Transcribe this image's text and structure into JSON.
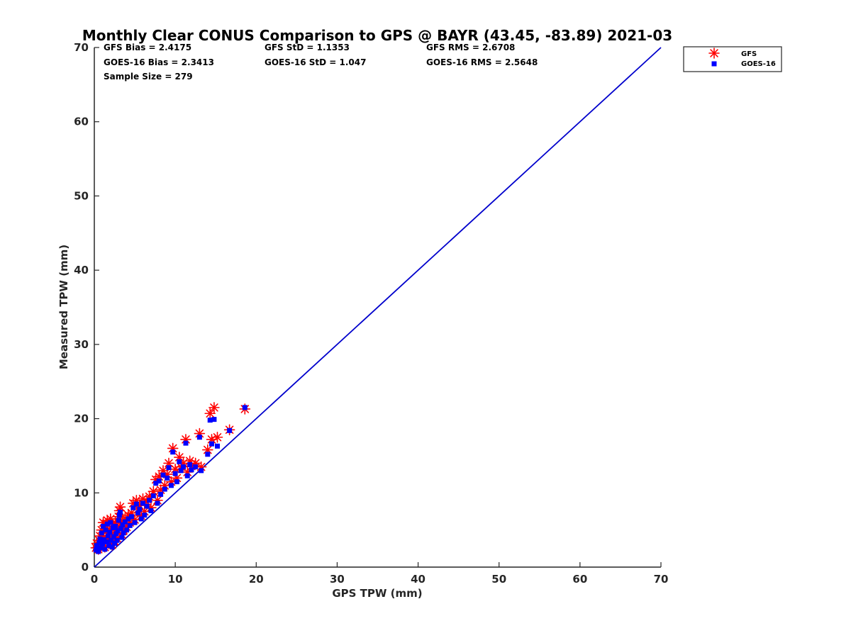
{
  "chart_data": {
    "type": "scatter",
    "title": "Monthly Clear CONUS Comparison to GPS @ BAYR (43.45, -83.89) 2021-03",
    "xlabel": "GPS TPW (mm)",
    "ylabel": "Measured TPW (mm)",
    "xlim": [
      0,
      70
    ],
    "ylim": [
      0,
      70
    ],
    "x_ticks": [
      "0",
      "10",
      "20",
      "30",
      "40",
      "50",
      "60",
      "70"
    ],
    "y_ticks": [
      "0",
      "10",
      "20",
      "30",
      "40",
      "50",
      "60",
      "70"
    ],
    "grid": false,
    "legend_position": "top-right-outside",
    "stats": [
      "GFS Bias = 2.4175",
      "GFS StD = 1.1353",
      "GFS RMS = 2.6708",
      "GOES-16 Bias = 2.3413",
      "GOES-16 StD = 1.047",
      "GOES-16 RMS = 2.5648",
      "Sample Size = 279"
    ],
    "reference_line": {
      "x": [
        0,
        70
      ],
      "y": [
        0,
        70
      ],
      "color": "#0000cc"
    },
    "series": [
      {
        "name": "GFS",
        "marker": "asterisk",
        "color": "#ff0000",
        "points": [
          [
            0.2,
            2.6
          ],
          [
            0.3,
            3.2
          ],
          [
            0.5,
            2.4
          ],
          [
            0.6,
            3.6
          ],
          [
            0.7,
            4.2
          ],
          [
            0.8,
            2.9
          ],
          [
            0.9,
            5.0
          ],
          [
            1.0,
            3.4
          ],
          [
            1.1,
            6.0
          ],
          [
            1.2,
            4.1
          ],
          [
            1.3,
            2.7
          ],
          [
            1.4,
            5.5
          ],
          [
            1.5,
            3.8
          ],
          [
            1.6,
            6.3
          ],
          [
            1.7,
            4.6
          ],
          [
            1.8,
            3.2
          ],
          [
            1.9,
            5.1
          ],
          [
            2.0,
            6.5
          ],
          [
            2.1,
            4.0
          ],
          [
            2.2,
            3.0
          ],
          [
            2.3,
            5.8
          ],
          [
            2.4,
            4.5
          ],
          [
            2.5,
            3.5
          ],
          [
            2.6,
            6.0
          ],
          [
            2.7,
            4.9
          ],
          [
            2.8,
            3.9
          ],
          [
            2.9,
            5.3
          ],
          [
            3.0,
            6.8
          ],
          [
            3.1,
            7.6
          ],
          [
            3.2,
            8.1
          ],
          [
            3.3,
            5.6
          ],
          [
            3.4,
            4.4
          ],
          [
            3.5,
            6.2
          ],
          [
            3.6,
            5.0
          ],
          [
            3.8,
            6.6
          ],
          [
            4.0,
            5.4
          ],
          [
            4.2,
            7.0
          ],
          [
            4.4,
            6.0
          ],
          [
            4.6,
            7.3
          ],
          [
            4.8,
            8.6
          ],
          [
            5.0,
            6.4
          ],
          [
            5.2,
            9.0
          ],
          [
            5.4,
            7.8
          ],
          [
            5.6,
            8.3
          ],
          [
            5.8,
            6.9
          ],
          [
            6.0,
            9.2
          ],
          [
            6.2,
            7.5
          ],
          [
            6.5,
            8.8
          ],
          [
            6.8,
            9.5
          ],
          [
            7.0,
            8.0
          ],
          [
            7.3,
            10.2
          ],
          [
            7.6,
            11.8
          ],
          [
            7.8,
            9.0
          ],
          [
            8.0,
            12.2
          ],
          [
            8.2,
            10.4
          ],
          [
            8.5,
            13.0
          ],
          [
            8.7,
            11.0
          ],
          [
            9.0,
            12.5
          ],
          [
            9.2,
            14.0
          ],
          [
            9.5,
            11.5
          ],
          [
            9.7,
            16.0
          ],
          [
            10.0,
            13.2
          ],
          [
            10.2,
            12.0
          ],
          [
            10.5,
            14.8
          ],
          [
            10.7,
            13.5
          ],
          [
            11.0,
            14.0
          ],
          [
            11.3,
            17.2
          ],
          [
            11.5,
            12.8
          ],
          [
            11.8,
            14.3
          ],
          [
            12.0,
            13.6
          ],
          [
            12.5,
            14.0
          ],
          [
            13.0,
            18.0
          ],
          [
            13.2,
            13.5
          ],
          [
            14.0,
            15.8
          ],
          [
            14.3,
            20.7
          ],
          [
            14.5,
            17.2
          ],
          [
            14.8,
            21.5
          ],
          [
            15.2,
            17.5
          ],
          [
            16.7,
            18.5
          ],
          [
            18.6,
            21.3
          ]
        ]
      },
      {
        "name": "GOES-16",
        "marker": "square",
        "color": "#0000ff",
        "points": [
          [
            0.2,
            2.3
          ],
          [
            0.3,
            2.9
          ],
          [
            0.5,
            2.1
          ],
          [
            0.6,
            3.3
          ],
          [
            0.7,
            3.8
          ],
          [
            0.8,
            2.6
          ],
          [
            0.9,
            4.6
          ],
          [
            1.0,
            3.1
          ],
          [
            1.1,
            5.5
          ],
          [
            1.2,
            3.7
          ],
          [
            1.3,
            2.4
          ],
          [
            1.4,
            5.0
          ],
          [
            1.5,
            3.4
          ],
          [
            1.6,
            5.8
          ],
          [
            1.7,
            4.2
          ],
          [
            1.8,
            2.9
          ],
          [
            1.9,
            4.7
          ],
          [
            2.0,
            6.0
          ],
          [
            2.1,
            3.6
          ],
          [
            2.2,
            2.7
          ],
          [
            2.3,
            5.3
          ],
          [
            2.4,
            4.1
          ],
          [
            2.5,
            3.2
          ],
          [
            2.6,
            5.5
          ],
          [
            2.7,
            4.5
          ],
          [
            2.8,
            3.6
          ],
          [
            2.9,
            4.9
          ],
          [
            3.0,
            6.3
          ],
          [
            3.1,
            7.0
          ],
          [
            3.2,
            7.4
          ],
          [
            3.3,
            5.2
          ],
          [
            3.4,
            4.0
          ],
          [
            3.5,
            5.7
          ],
          [
            3.6,
            4.6
          ],
          [
            3.8,
            6.1
          ],
          [
            4.0,
            5.0
          ],
          [
            4.2,
            6.5
          ],
          [
            4.4,
            5.6
          ],
          [
            4.6,
            6.8
          ],
          [
            4.8,
            8.0
          ],
          [
            5.0,
            6.0
          ],
          [
            5.2,
            8.5
          ],
          [
            5.4,
            7.3
          ],
          [
            5.6,
            7.8
          ],
          [
            5.8,
            6.5
          ],
          [
            6.0,
            8.6
          ],
          [
            6.2,
            7.0
          ],
          [
            6.5,
            8.2
          ],
          [
            6.8,
            9.0
          ],
          [
            7.0,
            7.6
          ],
          [
            7.3,
            9.6
          ],
          [
            7.6,
            11.3
          ],
          [
            7.8,
            8.6
          ],
          [
            8.0,
            11.6
          ],
          [
            8.2,
            9.8
          ],
          [
            8.5,
            12.4
          ],
          [
            8.7,
            10.5
          ],
          [
            9.0,
            12.0
          ],
          [
            9.2,
            13.4
          ],
          [
            9.5,
            11.0
          ],
          [
            9.7,
            15.5
          ],
          [
            10.0,
            12.6
          ],
          [
            10.2,
            11.5
          ],
          [
            10.5,
            14.2
          ],
          [
            10.7,
            13.0
          ],
          [
            11.0,
            13.5
          ],
          [
            11.3,
            16.7
          ],
          [
            11.5,
            12.3
          ],
          [
            11.8,
            13.8
          ],
          [
            12.0,
            13.1
          ],
          [
            12.5,
            13.5
          ],
          [
            13.0,
            17.5
          ],
          [
            13.2,
            13.0
          ],
          [
            14.0,
            15.2
          ],
          [
            14.3,
            19.8
          ],
          [
            14.5,
            16.6
          ],
          [
            14.8,
            19.9
          ],
          [
            15.2,
            16.3
          ],
          [
            16.7,
            18.4
          ],
          [
            18.6,
            21.5
          ]
        ]
      }
    ]
  }
}
